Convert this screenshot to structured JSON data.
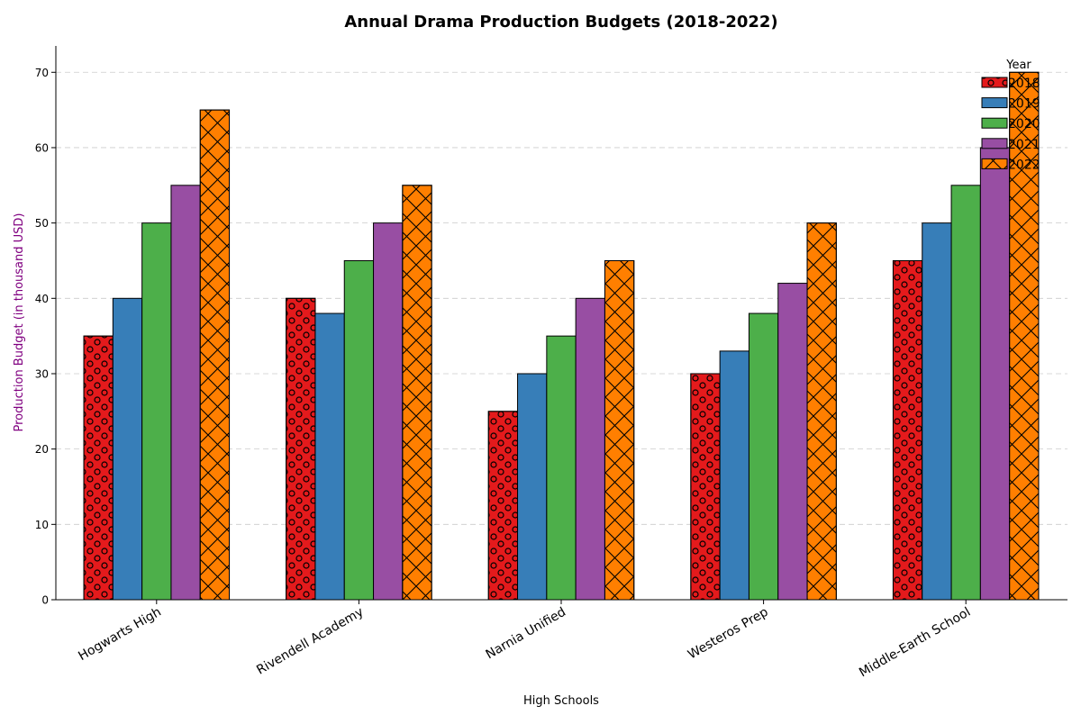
{
  "chart_data": {
    "type": "bar",
    "title": "Annual Drama Production Budgets (2018-2022)",
    "xlabel": "High Schools",
    "ylabel": "Production Budget (in thousand USD)",
    "categories": [
      "Hogwarts High",
      "Rivendell Academy",
      "Narnia Unified",
      "Westeros Prep",
      "Middle-Earth School"
    ],
    "series": [
      {
        "name": "2018",
        "values": [
          35,
          40,
          25,
          30,
          45
        ],
        "color": "#e41a1c",
        "pattern": "circles"
      },
      {
        "name": "2019",
        "values": [
          40,
          38,
          30,
          33,
          50
        ],
        "color": "#377eb8",
        "pattern": "none"
      },
      {
        "name": "2020",
        "values": [
          50,
          45,
          35,
          38,
          55
        ],
        "color": "#4daf4a",
        "pattern": "none"
      },
      {
        "name": "2021",
        "values": [
          55,
          50,
          40,
          42,
          60
        ],
        "color": "#984ea3",
        "pattern": "none"
      },
      {
        "name": "2022",
        "values": [
          65,
          55,
          45,
          50,
          70
        ],
        "color": "#ff7f00",
        "pattern": "crosshatch"
      }
    ],
    "ylim": [
      0,
      73.5
    ],
    "yticks": [
      0,
      10,
      20,
      30,
      40,
      50,
      60,
      70
    ],
    "grid": "horizontal dashed",
    "legend": {
      "title": "Year",
      "placement": "top-right"
    },
    "ylabel_color": "#800080"
  }
}
